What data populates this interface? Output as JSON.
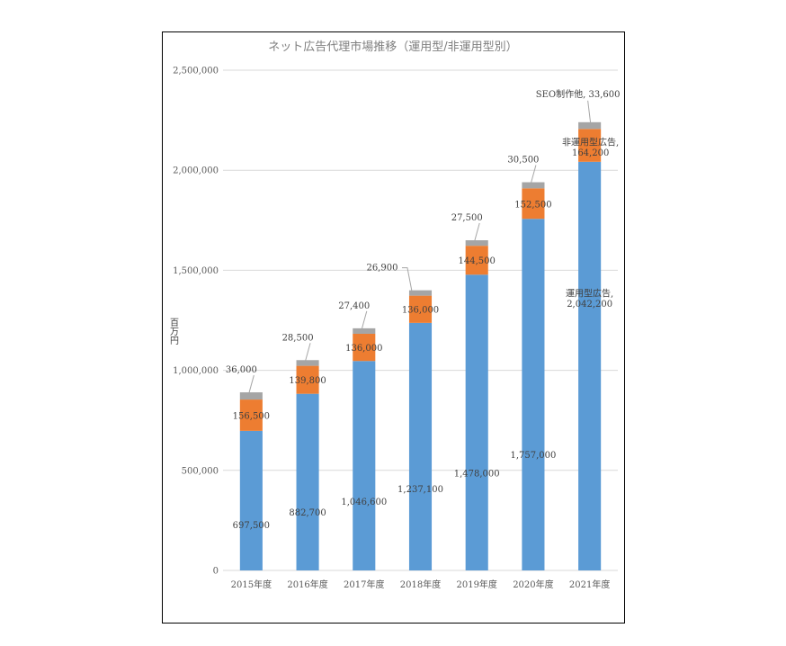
{
  "chart_data": {
    "type": "bar",
    "stacked": true,
    "title": "ネット広告代理市場推移（運用型/非運用型別）",
    "ylabel": "百万円",
    "xlabel": "",
    "ylim": [
      0,
      2500000
    ],
    "yticks": [
      0,
      500000,
      1000000,
      1500000,
      2000000,
      2500000
    ],
    "ytick_labels": [
      "0",
      "500,000",
      "1,000,000",
      "1,500,000",
      "2,000,000",
      "2,500,000"
    ],
    "grid": true,
    "legend": "none",
    "categories": [
      "2015年度",
      "2016年度",
      "2017年度",
      "2018年度",
      "2019年度",
      "2020年度",
      "2021年度"
    ],
    "series": [
      {
        "name": "運用型広告",
        "color": "#5b9bd5",
        "values": [
          697500,
          882700,
          1046600,
          1237100,
          1478000,
          1757000,
          2042200
        ],
        "labels": [
          "697,500",
          "882,700",
          "1,046,600",
          "1,237,100",
          "1,478,000",
          "1,757,000",
          "運用型広告,\n2,042,200"
        ]
      },
      {
        "name": "非運用型広告",
        "color": "#ed7d31",
        "values": [
          156500,
          139800,
          136000,
          136000,
          144500,
          152500,
          164200
        ],
        "labels": [
          "156,500",
          "139,800",
          "136,000",
          "136,000",
          "144,500",
          "152,500",
          "非運用型広告,\n164,200"
        ]
      },
      {
        "name": "SEO制作他",
        "color": "#a5a5a5",
        "values": [
          36000,
          28500,
          27400,
          26900,
          27500,
          30500,
          33600
        ],
        "labels": [
          "36,000",
          "28,500",
          "27,400",
          "26,900",
          "27,500",
          "30,500",
          "SEO制作他, 33,600"
        ]
      }
    ]
  }
}
